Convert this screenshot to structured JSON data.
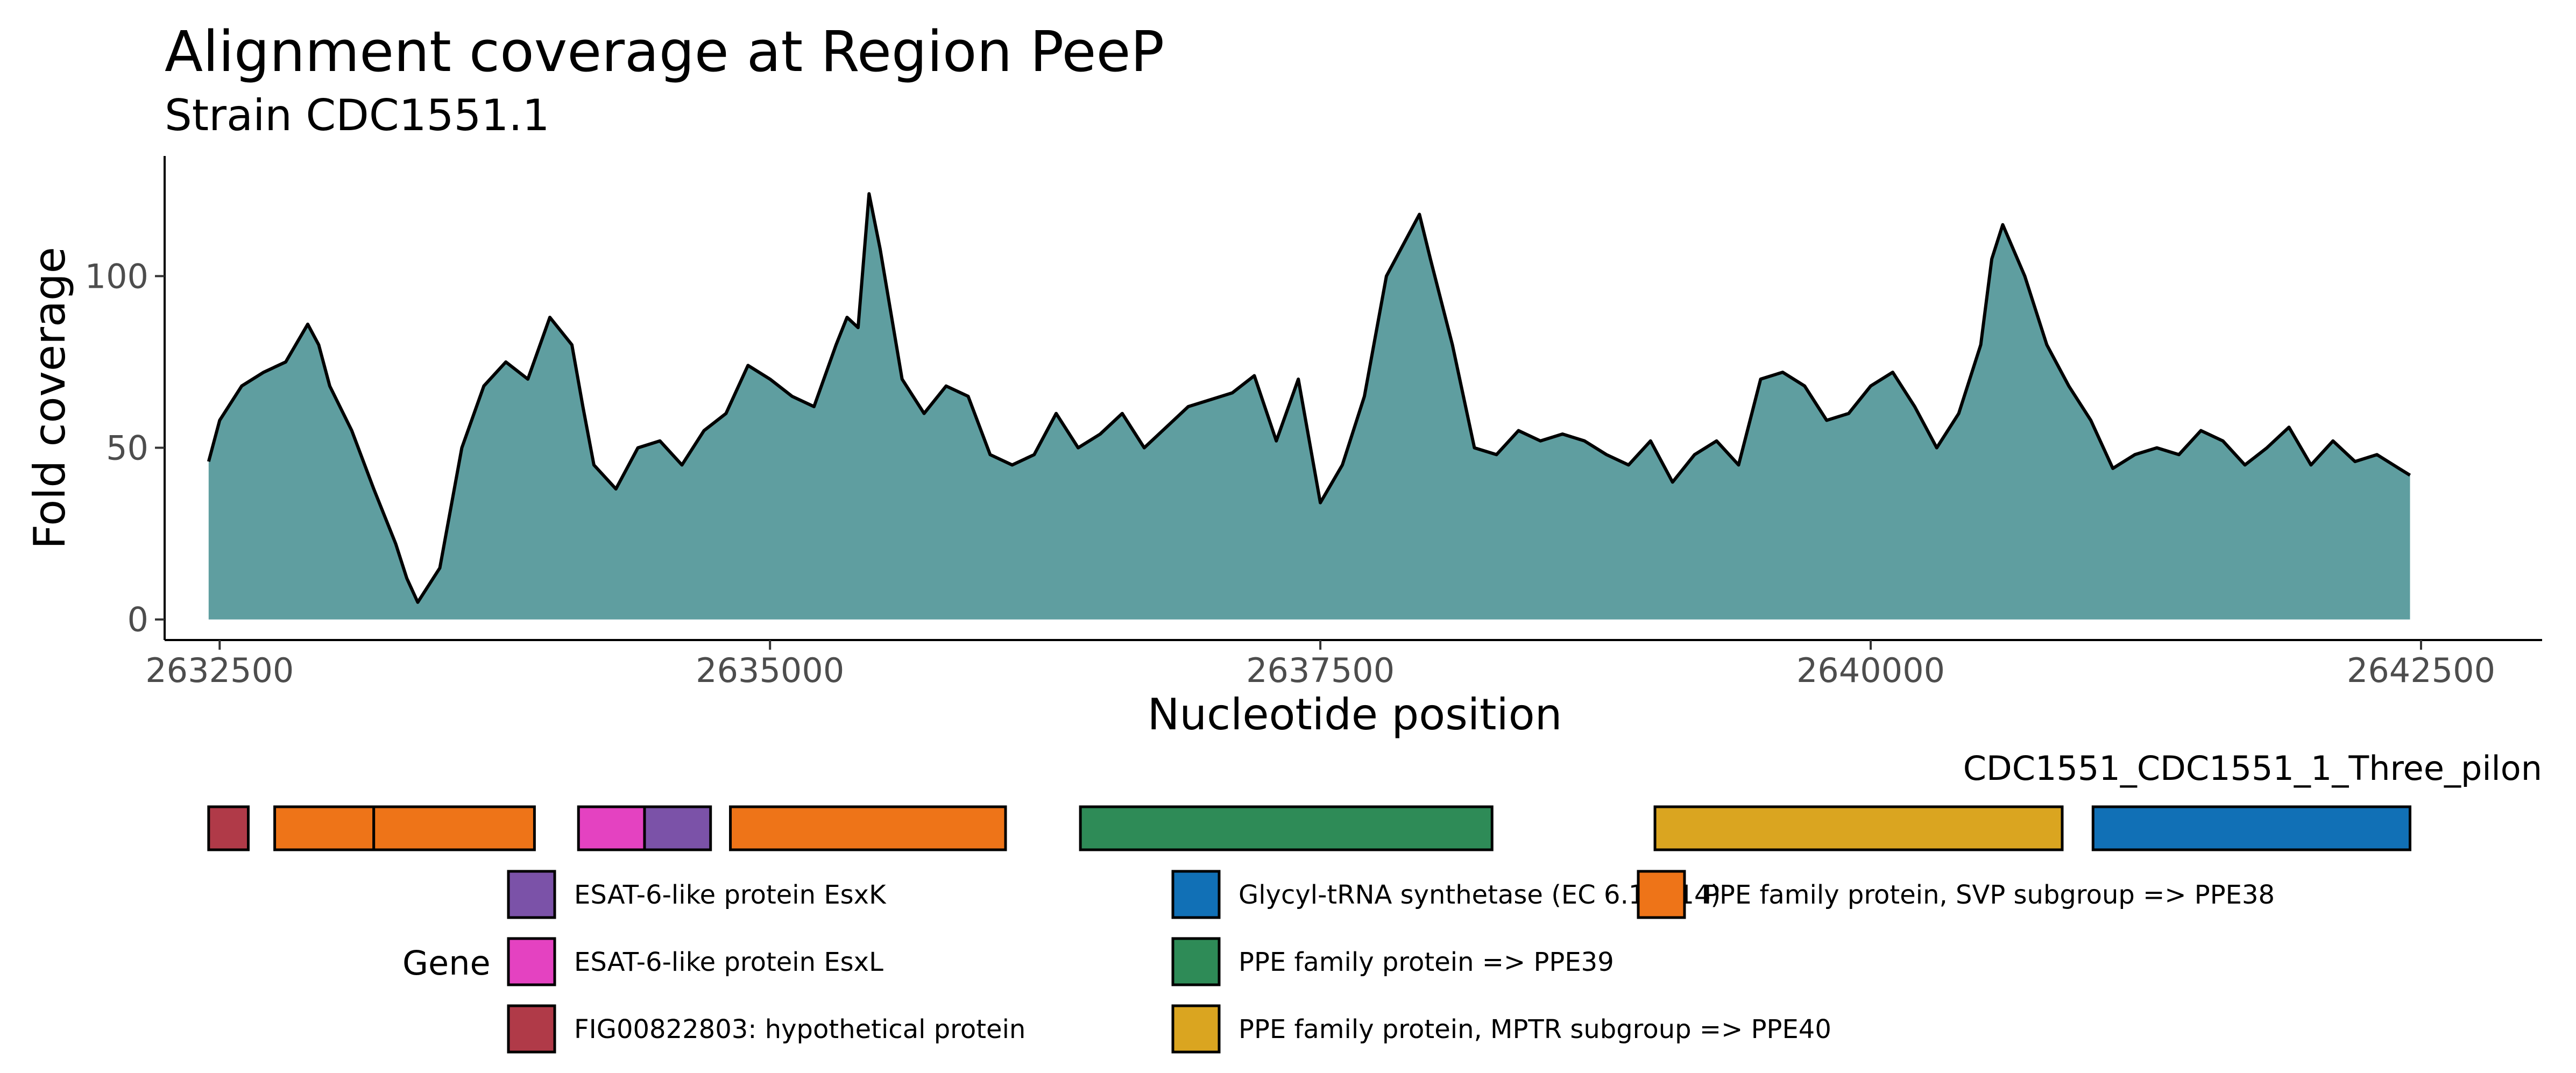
{
  "chart_data": {
    "type": "area",
    "title": "Alignment coverage at Region PeeP",
    "subtitle": "Strain CDC1551.1",
    "xlabel": "Nucleotide position",
    "ylabel": "Fold coverage",
    "xlim": [
      2632250,
      2643050
    ],
    "ylim": [
      -6,
      135
    ],
    "x_ticks": [
      2632500,
      2635000,
      2637500,
      2640000,
      2642500
    ],
    "y_ticks": [
      0,
      50,
      100
    ],
    "grid": false,
    "fill_color": "#5f9ea0",
    "line_color": "#000000",
    "coverage": {
      "x": [
        2632450,
        2632500,
        2632600,
        2632700,
        2632800,
        2632900,
        2632950,
        2633000,
        2633100,
        2633200,
        2633300,
        2633350,
        2633400,
        2633500,
        2633600,
        2633700,
        2633800,
        2633900,
        2634000,
        2634050,
        2634100,
        2634150,
        2634200,
        2634300,
        2634400,
        2634500,
        2634600,
        2634700,
        2634800,
        2634900,
        2635000,
        2635100,
        2635200,
        2635300,
        2635350,
        2635400,
        2635450,
        2635500,
        2635600,
        2635700,
        2635800,
        2635900,
        2636000,
        2636100,
        2636200,
        2636300,
        2636400,
        2636500,
        2636600,
        2636700,
        2636800,
        2636900,
        2637000,
        2637100,
        2637200,
        2637300,
        2637400,
        2637500,
        2637600,
        2637700,
        2637800,
        2637900,
        2637950,
        2638000,
        2638100,
        2638200,
        2638300,
        2638400,
        2638500,
        2638600,
        2638700,
        2638800,
        2638900,
        2639000,
        2639100,
        2639200,
        2639300,
        2639400,
        2639500,
        2639600,
        2639700,
        2639800,
        2639900,
        2640000,
        2640100,
        2640200,
        2640300,
        2640400,
        2640500,
        2640550,
        2640600,
        2640700,
        2640800,
        2640900,
        2641000,
        2641100,
        2641200,
        2641300,
        2641400,
        2641500,
        2641600,
        2641700,
        2641800,
        2641900,
        2642000,
        2642100,
        2642200,
        2642300,
        2642400,
        2642450
      ],
      "y": [
        46,
        58,
        68,
        72,
        75,
        86,
        80,
        68,
        55,
        38,
        22,
        12,
        5,
        15,
        50,
        68,
        75,
        70,
        88,
        84,
        80,
        62,
        45,
        38,
        50,
        52,
        45,
        55,
        60,
        74,
        70,
        65,
        62,
        80,
        88,
        85,
        124,
        108,
        70,
        60,
        68,
        65,
        48,
        45,
        48,
        60,
        50,
        54,
        60,
        50,
        56,
        62,
        64,
        66,
        71,
        52,
        70,
        34,
        45,
        65,
        100,
        112,
        118,
        105,
        80,
        50,
        48,
        55,
        52,
        54,
        52,
        48,
        45,
        52,
        40,
        48,
        52,
        45,
        70,
        72,
        68,
        58,
        60,
        68,
        72,
        62,
        50,
        60,
        80,
        105,
        115,
        100,
        80,
        68,
        58,
        44,
        48,
        50,
        48,
        55,
        52,
        45,
        50,
        56,
        45,
        52,
        46,
        48,
        44,
        42
      ]
    },
    "contig_label": "CDC1551_CDC1551_1_Three_pilon",
    "genes": [
      {
        "start": 2632450,
        "end": 2632630,
        "category": "FIG00822803: hypothetical protein"
      },
      {
        "start": 2632750,
        "end": 2633200,
        "category": "PPE family protein, SVP subgroup => PPE38"
      },
      {
        "start": 2633200,
        "end": 2633930,
        "category": "PPE family protein, SVP subgroup => PPE38"
      },
      {
        "start": 2634130,
        "end": 2634430,
        "category": "ESAT-6-like protein EsxL"
      },
      {
        "start": 2634430,
        "end": 2634730,
        "category": "ESAT-6-like protein EsxK"
      },
      {
        "start": 2634820,
        "end": 2636070,
        "category": "PPE family protein, SVP subgroup => PPE38"
      },
      {
        "start": 2636410,
        "end": 2638280,
        "category": "PPE family protein => PPE39"
      },
      {
        "start": 2639020,
        "end": 2640870,
        "category": "PPE family protein, MPTR subgroup => PPE40"
      },
      {
        "start": 2641010,
        "end": 2642450,
        "category": "Glycyl-tRNA synthetase (EC 6.1.1.14)"
      }
    ],
    "legend": {
      "title": "Gene",
      "placement": "bottom",
      "entries": [
        {
          "name": "ESAT-6-like protein EsxK",
          "color": "#7b52a8"
        },
        {
          "name": "ESAT-6-like protein EsxL",
          "color": "#e442c1"
        },
        {
          "name": "FIG00822803: hypothetical protein",
          "color": "#b03a48"
        },
        {
          "name": "Glycyl-tRNA synthetase (EC 6.1.1.14)",
          "color": "#1170b6"
        },
        {
          "name": "PPE family protein => PPE39",
          "color": "#2e8b57"
        },
        {
          "name": "PPE family protein, MPTR subgroup => PPE40",
          "color": "#daa520"
        },
        {
          "name": "PPE family protein, SVP subgroup => PPE38",
          "color": "#ee7418"
        }
      ]
    }
  }
}
